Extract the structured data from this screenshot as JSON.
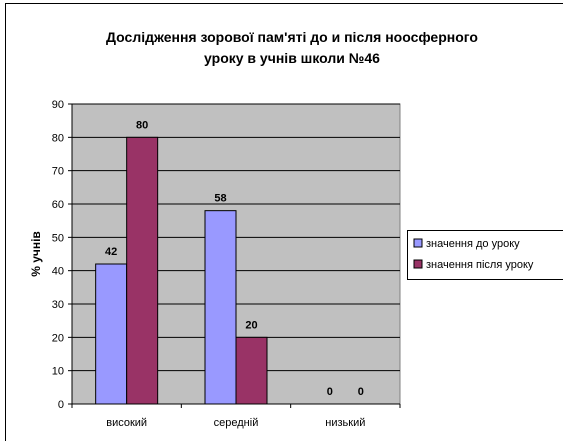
{
  "chart_data": {
    "type": "bar",
    "title_lines": [
      "Дослідження зорової пам'яті до и після ноосферного",
      "уроку в учнів школи №46"
    ],
    "xlabel": "",
    "ylabel": "% учнів",
    "categories": [
      "високий",
      "середній",
      "низький"
    ],
    "series": [
      {
        "name": "значення до уроку",
        "values": [
          42,
          58,
          0
        ],
        "color": "#9999ff"
      },
      {
        "name": "значення після уроку",
        "values": [
          80,
          20,
          0
        ],
        "color": "#993366"
      }
    ],
    "ylim": [
      0,
      90
    ],
    "yticks": [
      0,
      10,
      20,
      30,
      40,
      50,
      60,
      70,
      80,
      90
    ],
    "plot_background": "#c0c0c0",
    "grid": true,
    "legend_position": "right",
    "data_labels": true
  }
}
